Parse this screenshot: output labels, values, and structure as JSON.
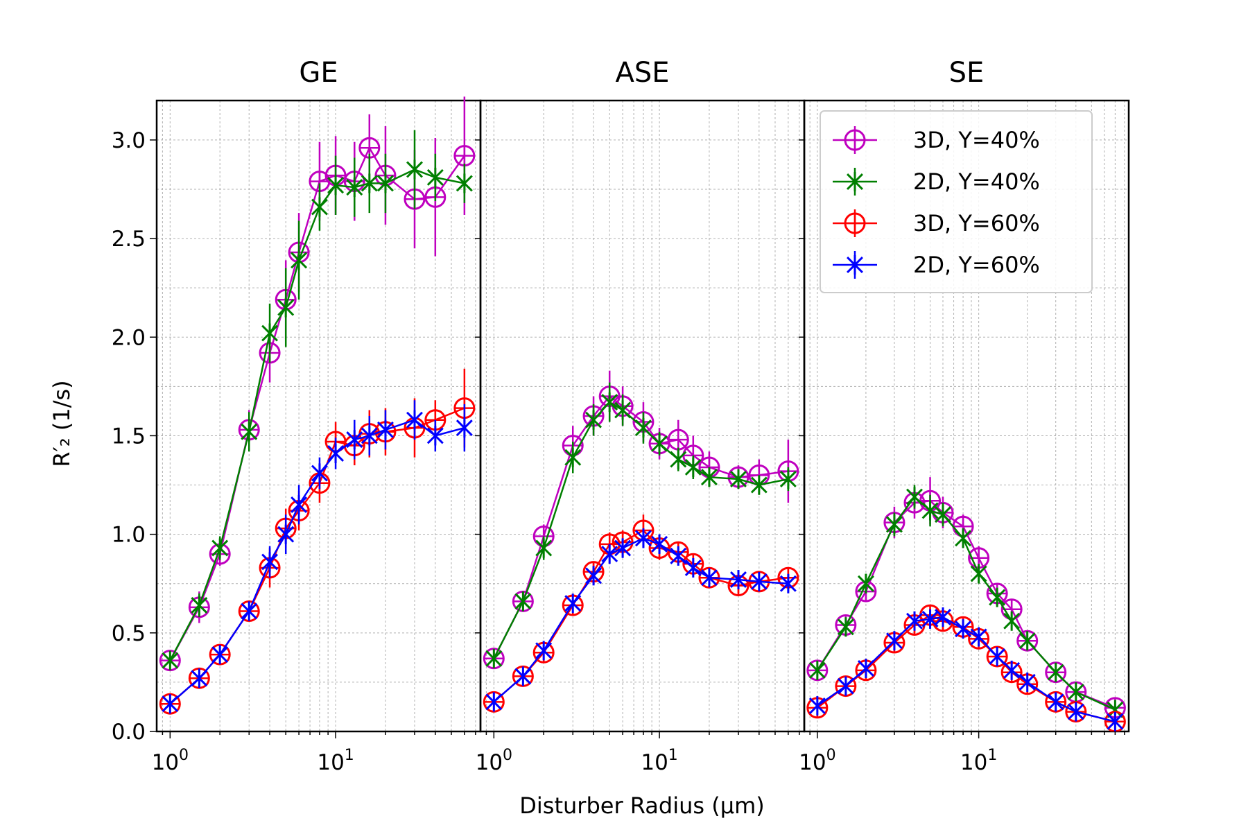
{
  "chart_data": {
    "type": "line",
    "xscale": "log",
    "xlabel": "Disturber Radius (μm)",
    "ylabel": "R′₂ (1/s)",
    "ylim": [
      0,
      3.2
    ],
    "yticks": [
      "0.0",
      "0.5",
      "1.0",
      "1.5",
      "2.0",
      "2.5",
      "3.0"
    ],
    "xticks": [
      {
        "base": "10",
        "exp": "0"
      },
      {
        "base": "10",
        "exp": "1"
      }
    ],
    "grid": true,
    "legend": {
      "location": "top-right of SE panel",
      "entries": [
        "3D, Y=40%",
        "2D, Y=40%",
        "3D, Y=60%",
        "2D, Y=60%"
      ]
    },
    "series_styles": [
      {
        "name": "3D, Y=40%",
        "color": "#bf00bf",
        "marker": "circle-plus"
      },
      {
        "name": "2D, Y=40%",
        "color": "#007f00",
        "marker": "star"
      },
      {
        "name": "3D, Y=60%",
        "color": "#ff0000",
        "marker": "circle-plus"
      },
      {
        "name": "2D, Y=60%",
        "color": "#0000ff",
        "marker": "star"
      }
    ],
    "panels": [
      {
        "title": "GE",
        "xlim": [
          0.83,
          75
        ],
        "series": [
          {
            "name": "3D, Y=40%",
            "x": [
              1,
              1.5,
              2,
              3,
              4,
              5,
              6,
              8,
              10,
              13,
              16,
              20,
              30,
              40,
              60
            ],
            "y": [
              0.36,
              0.63,
              0.9,
              1.53,
              1.92,
              2.19,
              2.43,
              2.79,
              2.82,
              2.79,
              2.96,
              2.82,
              2.7,
              2.71,
              2.92
            ],
            "err": [
              0.03,
              0.08,
              0.06,
              0.1,
              0.15,
              0.2,
              0.2,
              0.2,
              0.2,
              0.2,
              0.17,
              0.25,
              0.25,
              0.3,
              0.3
            ]
          },
          {
            "name": "2D, Y=40%",
            "x": [
              1,
              1.5,
              2,
              3,
              4,
              5,
              6,
              8,
              10,
              13,
              16,
              20,
              30,
              40,
              60
            ],
            "y": [
              0.36,
              0.64,
              0.93,
              1.52,
              2.02,
              2.15,
              2.39,
              2.66,
              2.77,
              2.76,
              2.78,
              2.78,
              2.85,
              2.81,
              2.78
            ],
            "err": [
              0.03,
              0.06,
              0.06,
              0.1,
              0.15,
              0.2,
              0.2,
              0.12,
              0.15,
              0.15,
              0.15,
              0.15,
              0.2,
              0.12,
              0.1
            ]
          },
          {
            "name": "3D, Y=60%",
            "x": [
              1,
              1.5,
              2,
              3,
              4,
              5,
              6,
              8,
              10,
              13,
              16,
              20,
              30,
              40,
              60
            ],
            "y": [
              0.14,
              0.27,
              0.39,
              0.61,
              0.83,
              1.03,
              1.12,
              1.26,
              1.47,
              1.45,
              1.51,
              1.52,
              1.54,
              1.58,
              1.64
            ],
            "err": [
              0.02,
              0.04,
              0.04,
              0.05,
              0.1,
              0.1,
              0.1,
              0.1,
              0.1,
              0.1,
              0.12,
              0.12,
              0.15,
              0.1,
              0.2
            ]
          },
          {
            "name": "2D, Y=60%",
            "x": [
              1,
              1.5,
              2,
              3,
              4,
              5,
              6,
              8,
              10,
              13,
              16,
              20,
              30,
              40,
              60
            ],
            "y": [
              0.14,
              0.27,
              0.39,
              0.61,
              0.86,
              1.0,
              1.15,
              1.31,
              1.41,
              1.48,
              1.5,
              1.53,
              1.58,
              1.5,
              1.54
            ],
            "err": [
              0.02,
              0.04,
              0.04,
              0.05,
              0.08,
              0.1,
              0.1,
              0.08,
              0.08,
              0.1,
              0.1,
              0.1,
              0.1,
              0.08,
              0.12
            ]
          }
        ]
      },
      {
        "title": "ASE",
        "xlim": [
          0.83,
          75
        ],
        "series": [
          {
            "name": "3D, Y=40%",
            "x": [
              1,
              1.5,
              2,
              3,
              4,
              5,
              6,
              8,
              10,
              13,
              16,
              20,
              30,
              40,
              60
            ],
            "y": [
              0.37,
              0.66,
              0.99,
              1.45,
              1.6,
              1.7,
              1.65,
              1.57,
              1.46,
              1.48,
              1.4,
              1.34,
              1.29,
              1.3,
              1.32
            ],
            "err": [
              0.03,
              0.05,
              0.06,
              0.1,
              0.1,
              0.13,
              0.1,
              0.1,
              0.08,
              0.1,
              0.1,
              0.08,
              0.06,
              0.08,
              0.16
            ]
          },
          {
            "name": "2D, Y=40%",
            "x": [
              1,
              1.5,
              2,
              3,
              4,
              5,
              6,
              8,
              10,
              13,
              16,
              20,
              30,
              40,
              60
            ],
            "y": [
              0.37,
              0.66,
              0.93,
              1.39,
              1.58,
              1.67,
              1.63,
              1.54,
              1.46,
              1.38,
              1.34,
              1.29,
              1.28,
              1.25,
              1.28
            ],
            "err": [
              0.03,
              0.05,
              0.06,
              0.08,
              0.08,
              0.1,
              0.08,
              0.08,
              0.06,
              0.06,
              0.06,
              0.05,
              0.05,
              0.05,
              0.06
            ]
          },
          {
            "name": "3D, Y=60%",
            "x": [
              1,
              1.5,
              2,
              3,
              4,
              5,
              6,
              8,
              10,
              13,
              16,
              20,
              30,
              40,
              60
            ],
            "y": [
              0.15,
              0.28,
              0.4,
              0.64,
              0.81,
              0.95,
              0.96,
              1.02,
              0.93,
              0.91,
              0.85,
              0.78,
              0.74,
              0.76,
              0.78
            ],
            "err": [
              0.02,
              0.03,
              0.04,
              0.05,
              0.05,
              0.06,
              0.06,
              0.08,
              0.06,
              0.05,
              0.05,
              0.04,
              0.04,
              0.04,
              0.05
            ]
          },
          {
            "name": "2D, Y=60%",
            "x": [
              1,
              1.5,
              2,
              3,
              4,
              5,
              6,
              8,
              10,
              13,
              16,
              20,
              30,
              40,
              60
            ],
            "y": [
              0.15,
              0.28,
              0.41,
              0.65,
              0.79,
              0.9,
              0.93,
              0.98,
              0.95,
              0.89,
              0.83,
              0.78,
              0.77,
              0.76,
              0.75
            ],
            "err": [
              0.02,
              0.03,
              0.03,
              0.04,
              0.04,
              0.05,
              0.05,
              0.05,
              0.05,
              0.04,
              0.04,
              0.04,
              0.04,
              0.04,
              0.04
            ]
          }
        ]
      },
      {
        "title": "SE",
        "xlim": [
          0.83,
          85
        ],
        "series": [
          {
            "name": "3D, Y=40%",
            "x": [
              1,
              1.5,
              2,
              3,
              4,
              5,
              6,
              8,
              10,
              13,
              16,
              20,
              30,
              40,
              70
            ],
            "y": [
              0.31,
              0.54,
              0.71,
              1.06,
              1.16,
              1.17,
              1.11,
              1.04,
              0.88,
              0.7,
              0.62,
              0.46,
              0.3,
              0.2,
              0.12
            ],
            "err": [
              0.03,
              0.04,
              0.05,
              0.08,
              0.08,
              0.12,
              0.08,
              0.06,
              0.06,
              0.05,
              0.05,
              0.04,
              0.03,
              0.03,
              0.02
            ]
          },
          {
            "name": "2D, Y=40%",
            "x": [
              1,
              1.5,
              2,
              3,
              4,
              5,
              6,
              8,
              10,
              13,
              16,
              20,
              30,
              40,
              70
            ],
            "y": [
              0.31,
              0.53,
              0.75,
              1.05,
              1.19,
              1.12,
              1.1,
              0.98,
              0.8,
              0.68,
              0.56,
              0.46,
              0.3,
              0.2,
              0.11
            ],
            "err": [
              0.03,
              0.04,
              0.05,
              0.06,
              0.06,
              0.08,
              0.06,
              0.05,
              0.05,
              0.04,
              0.04,
              0.04,
              0.03,
              0.03,
              0.02
            ]
          },
          {
            "name": "3D, Y=60%",
            "x": [
              1,
              1.5,
              2,
              3,
              4,
              5,
              6,
              8,
              10,
              13,
              16,
              20,
              30,
              40,
              70
            ],
            "y": [
              0.12,
              0.23,
              0.31,
              0.45,
              0.54,
              0.59,
              0.56,
              0.53,
              0.47,
              0.38,
              0.3,
              0.24,
              0.15,
              0.1,
              0.05
            ],
            "err": [
              0.02,
              0.02,
              0.03,
              0.04,
              0.04,
              0.04,
              0.04,
              0.03,
              0.03,
              0.03,
              0.03,
              0.02,
              0.02,
              0.02,
              0.01
            ]
          },
          {
            "name": "2D, Y=60%",
            "x": [
              1,
              1.5,
              2,
              3,
              4,
              5,
              6,
              8,
              10,
              13,
              16,
              20,
              30,
              40,
              70
            ],
            "y": [
              0.13,
              0.23,
              0.32,
              0.46,
              0.56,
              0.57,
              0.58,
              0.52,
              0.48,
              0.38,
              0.31,
              0.25,
              0.15,
              0.1,
              0.05
            ],
            "err": [
              0.02,
              0.02,
              0.03,
              0.03,
              0.03,
              0.04,
              0.03,
              0.03,
              0.03,
              0.03,
              0.02,
              0.02,
              0.02,
              0.02,
              0.01
            ]
          }
        ]
      }
    ]
  }
}
